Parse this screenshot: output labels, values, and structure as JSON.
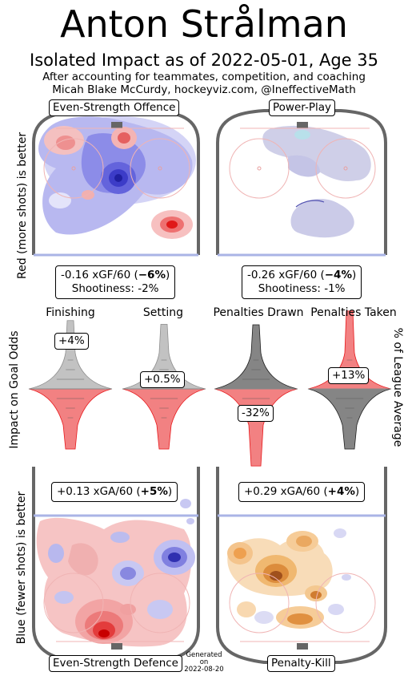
{
  "header": {
    "title": "Anton Strålman",
    "subtitle": "Isolated Impact as of 2022-05-01, Age 35",
    "note_line1": "After accounting for teammates, competition, and coaching",
    "note_line2": "Micah Blake McCurdy, hockeyviz.com, @IneffectiveMath"
  },
  "axis_labels": {
    "left_top": "Red (more shots) is better",
    "left_middle": "Impact on Goal Odds",
    "right_middle": "% of League Average",
    "left_bottom": "Blue (fewer shots) is better"
  },
  "panels": {
    "ev_offence": {
      "label": "Even-Strength Offence",
      "stat_value": "-0.16 xGF/60 (",
      "stat_pct": "−6%",
      "stat_close": ")",
      "shootiness": "Shootiness: -2%"
    },
    "power_play": {
      "label": "Power-Play",
      "stat_value": "-0.26 xGF/60 (",
      "stat_pct": "−4%",
      "stat_close": ")",
      "shootiness": "Shootiness: -1%"
    },
    "ev_defence": {
      "label": "Even-Strength Defence",
      "stat_value": "+0.13 xGA/60 (",
      "stat_pct": "+5%",
      "stat_close": ")"
    },
    "penalty_kill": {
      "label": "Penalty-Kill",
      "stat_value": "+0.29 xGA/60 (",
      "stat_pct": "+4%",
      "stat_close": ")"
    }
  },
  "generated": {
    "line1": "Generated",
    "line2": "on",
    "line3": "2022-08-20"
  },
  "chart_data": {
    "type": "violin",
    "categories": [
      "Finishing",
      "Setting",
      "Penalties Drawn",
      "Penalties Taken"
    ],
    "values": [
      4,
      0.5,
      -32,
      13
    ],
    "value_labels": [
      "+4%",
      "+0.5%",
      "-32%",
      "+13%"
    ],
    "colors": {
      "positive": "#e8191c",
      "negative": "#909090",
      "neutral": "#c8c8c8",
      "dark": "#202020"
    }
  }
}
